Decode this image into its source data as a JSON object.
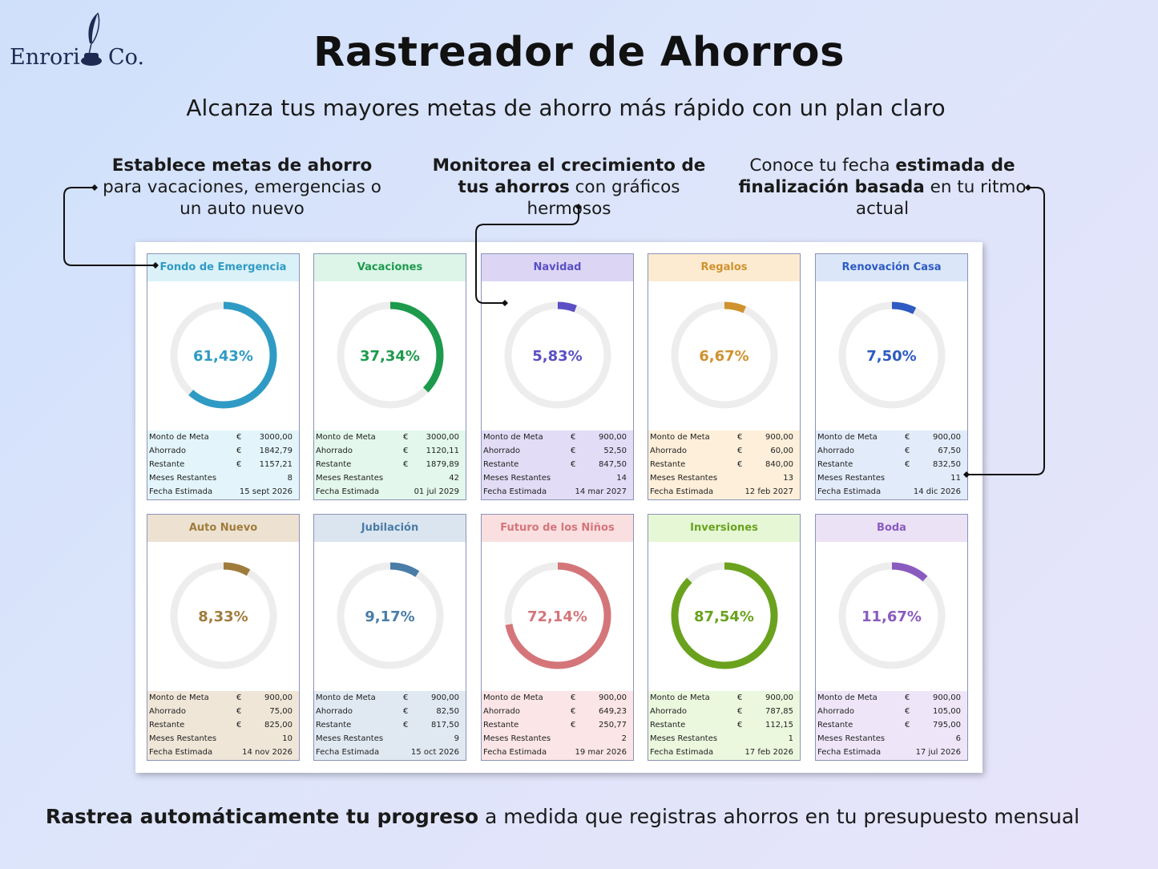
{
  "brand": {
    "name_left": "Enrori",
    "name_right": "Co."
  },
  "header": {
    "title": "Rastreador de Ahorros",
    "subtitle": "Alcanza tus mayores metas de ahorro más rápido con un plan claro"
  },
  "callouts": [
    {
      "bold": "Establece metas de ahorro",
      "rest": " para vacaciones, emergencias o un auto nuevo"
    },
    {
      "bold": "Monitorea el crecimiento de tus ahorros",
      "rest": " con gráficos hermosos"
    },
    {
      "pre": "Conoce tu fecha ",
      "bold": "estimada de finalización basada",
      "rest": " en tu ritmo actual"
    }
  ],
  "labels": {
    "goal": "Monto de Meta",
    "saved": "Ahorrado",
    "remaining": "Restante",
    "months": "Meses Restantes",
    "date": "Fecha Estimada",
    "currency": "€"
  },
  "goals": [
    {
      "name": "Fondo de Emergencia",
      "percent_label": "61,43%",
      "progress": 0.6143,
      "goal": "3000,00",
      "saved": "1842,79",
      "remaining": "1157,21",
      "months": "8",
      "date": "15 sept 2026",
      "color": "#2f9bc4",
      "header_bg": "#daf1f8",
      "stats_bg": "#e3f5fb"
    },
    {
      "name": "Vacaciones",
      "percent_label": "37,34%",
      "progress": 0.3734,
      "goal": "3000,00",
      "saved": "1120,11",
      "remaining": "1879,89",
      "months": "42",
      "date": "01 jul 2029",
      "color": "#1e9a4d",
      "header_bg": "#dcf5e8",
      "stats_bg": "#e3f7ec"
    },
    {
      "name": "Navidad",
      "percent_label": "5,83%",
      "progress": 0.0583,
      "goal": "900,00",
      "saved": "52,50",
      "remaining": "847,50",
      "months": "14",
      "date": "14 mar 2027",
      "color": "#5a4fc4",
      "header_bg": "#dcd6f4",
      "stats_bg": "#e2dcf6"
    },
    {
      "name": "Regalos",
      "percent_label": "6,67%",
      "progress": 0.0667,
      "goal": "900,00",
      "saved": "60,00",
      "remaining": "840,00",
      "months": "13",
      "date": "12 feb 2027",
      "color": "#d0922e",
      "header_bg": "#fdebd1",
      "stats_bg": "#fdefda"
    },
    {
      "name": "Renovación Casa",
      "percent_label": "7,50%",
      "progress": 0.075,
      "goal": "900,00",
      "saved": "67,50",
      "remaining": "832,50",
      "months": "11",
      "date": "14 dic 2026",
      "color": "#2d5bc2",
      "header_bg": "#dbe6f8",
      "stats_bg": "#e2ebf9"
    },
    {
      "name": "Auto Nuevo",
      "percent_label": "8,33%",
      "progress": 0.0833,
      "goal": "900,00",
      "saved": "75,00",
      "remaining": "825,00",
      "months": "10",
      "date": "14 nov 2026",
      "color": "#a07c3c",
      "header_bg": "#ede2d2",
      "stats_bg": "#efe6d8"
    },
    {
      "name": "Jubilación",
      "percent_label": "9,17%",
      "progress": 0.0917,
      "goal": "900,00",
      "saved": "82,50",
      "remaining": "817,50",
      "months": "9",
      "date": "15 oct 2026",
      "color": "#4a7ca8",
      "header_bg": "#dbe5ef",
      "stats_bg": "#e0e9f2"
    },
    {
      "name": "Futuro de los Niños",
      "percent_label": "72,14%",
      "progress": 0.7214,
      "goal": "900,00",
      "saved": "649,23",
      "remaining": "250,77",
      "months": "2",
      "date": "19 mar 2026",
      "color": "#d4757a",
      "header_bg": "#fadfe0",
      "stats_bg": "#fbe5e6"
    },
    {
      "name": "Inversiones",
      "percent_label": "87,54%",
      "progress": 0.8754,
      "goal": "900,00",
      "saved": "787,85",
      "remaining": "112,15",
      "months": "1",
      "date": "17 feb 2026",
      "color": "#6aa21e",
      "header_bg": "#e6f7d6",
      "stats_bg": "#ebf8de"
    },
    {
      "name": "Boda",
      "percent_label": "11,67%",
      "progress": 0.1167,
      "goal": "900,00",
      "saved": "105,00",
      "remaining": "795,00",
      "months": "6",
      "date": "17 jul 2026",
      "color": "#8a5bbf",
      "header_bg": "#ebe2f6",
      "stats_bg": "#eee6f8"
    }
  ],
  "footer": {
    "bold": "Rastrea automáticamente tu progreso",
    "rest": " a medida que registras ahorros en tu presupuesto mensual"
  }
}
